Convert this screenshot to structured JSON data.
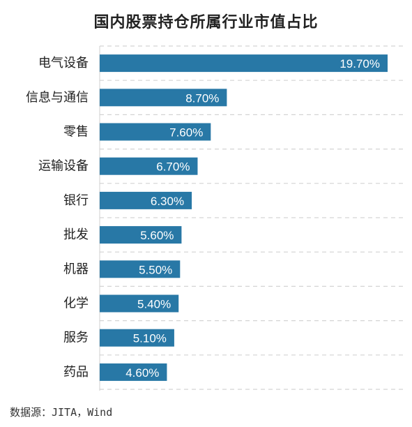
{
  "chart_data": {
    "type": "bar",
    "orientation": "horizontal",
    "title": "国内股票持仓所属行业市值占比",
    "categories": [
      "电气设备",
      "信息与通信",
      "零售",
      "运输设备",
      "银行",
      "批发",
      "机器",
      "化学",
      "服务",
      "药品"
    ],
    "values": [
      19.7,
      8.7,
      7.6,
      6.7,
      6.3,
      5.6,
      5.5,
      5.4,
      5.1,
      4.6
    ],
    "value_labels": [
      "19.70%",
      "8.70%",
      "7.60%",
      "6.70%",
      "6.30%",
      "5.60%",
      "5.50%",
      "5.40%",
      "5.10%",
      "4.60%"
    ],
    "unit": "%",
    "xlim": [
      0,
      19.7
    ],
    "grid": "horizontal dashed",
    "bar_color": "#2878a6"
  },
  "source": "数据源：JITA，Wind"
}
